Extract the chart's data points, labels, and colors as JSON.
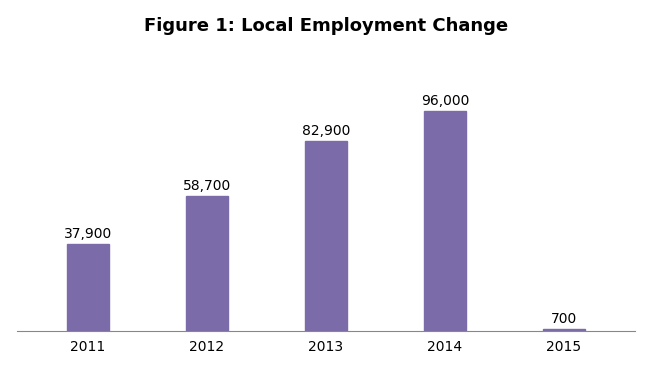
{
  "title": "Figure 1: Local Employment Change",
  "categories": [
    "2011",
    "2012",
    "2013",
    "2014",
    "2015"
  ],
  "values": [
    37900,
    58700,
    82900,
    96000,
    700
  ],
  "labels": [
    "37,900",
    "58,700",
    "82,900",
    "96,000",
    "700"
  ],
  "bar_color": "#7B6BA8",
  "background_color": "#ffffff",
  "title_fontsize": 13,
  "label_fontsize": 10,
  "tick_fontsize": 10,
  "bar_width": 0.35,
  "ylim": [
    0,
    120000
  ]
}
